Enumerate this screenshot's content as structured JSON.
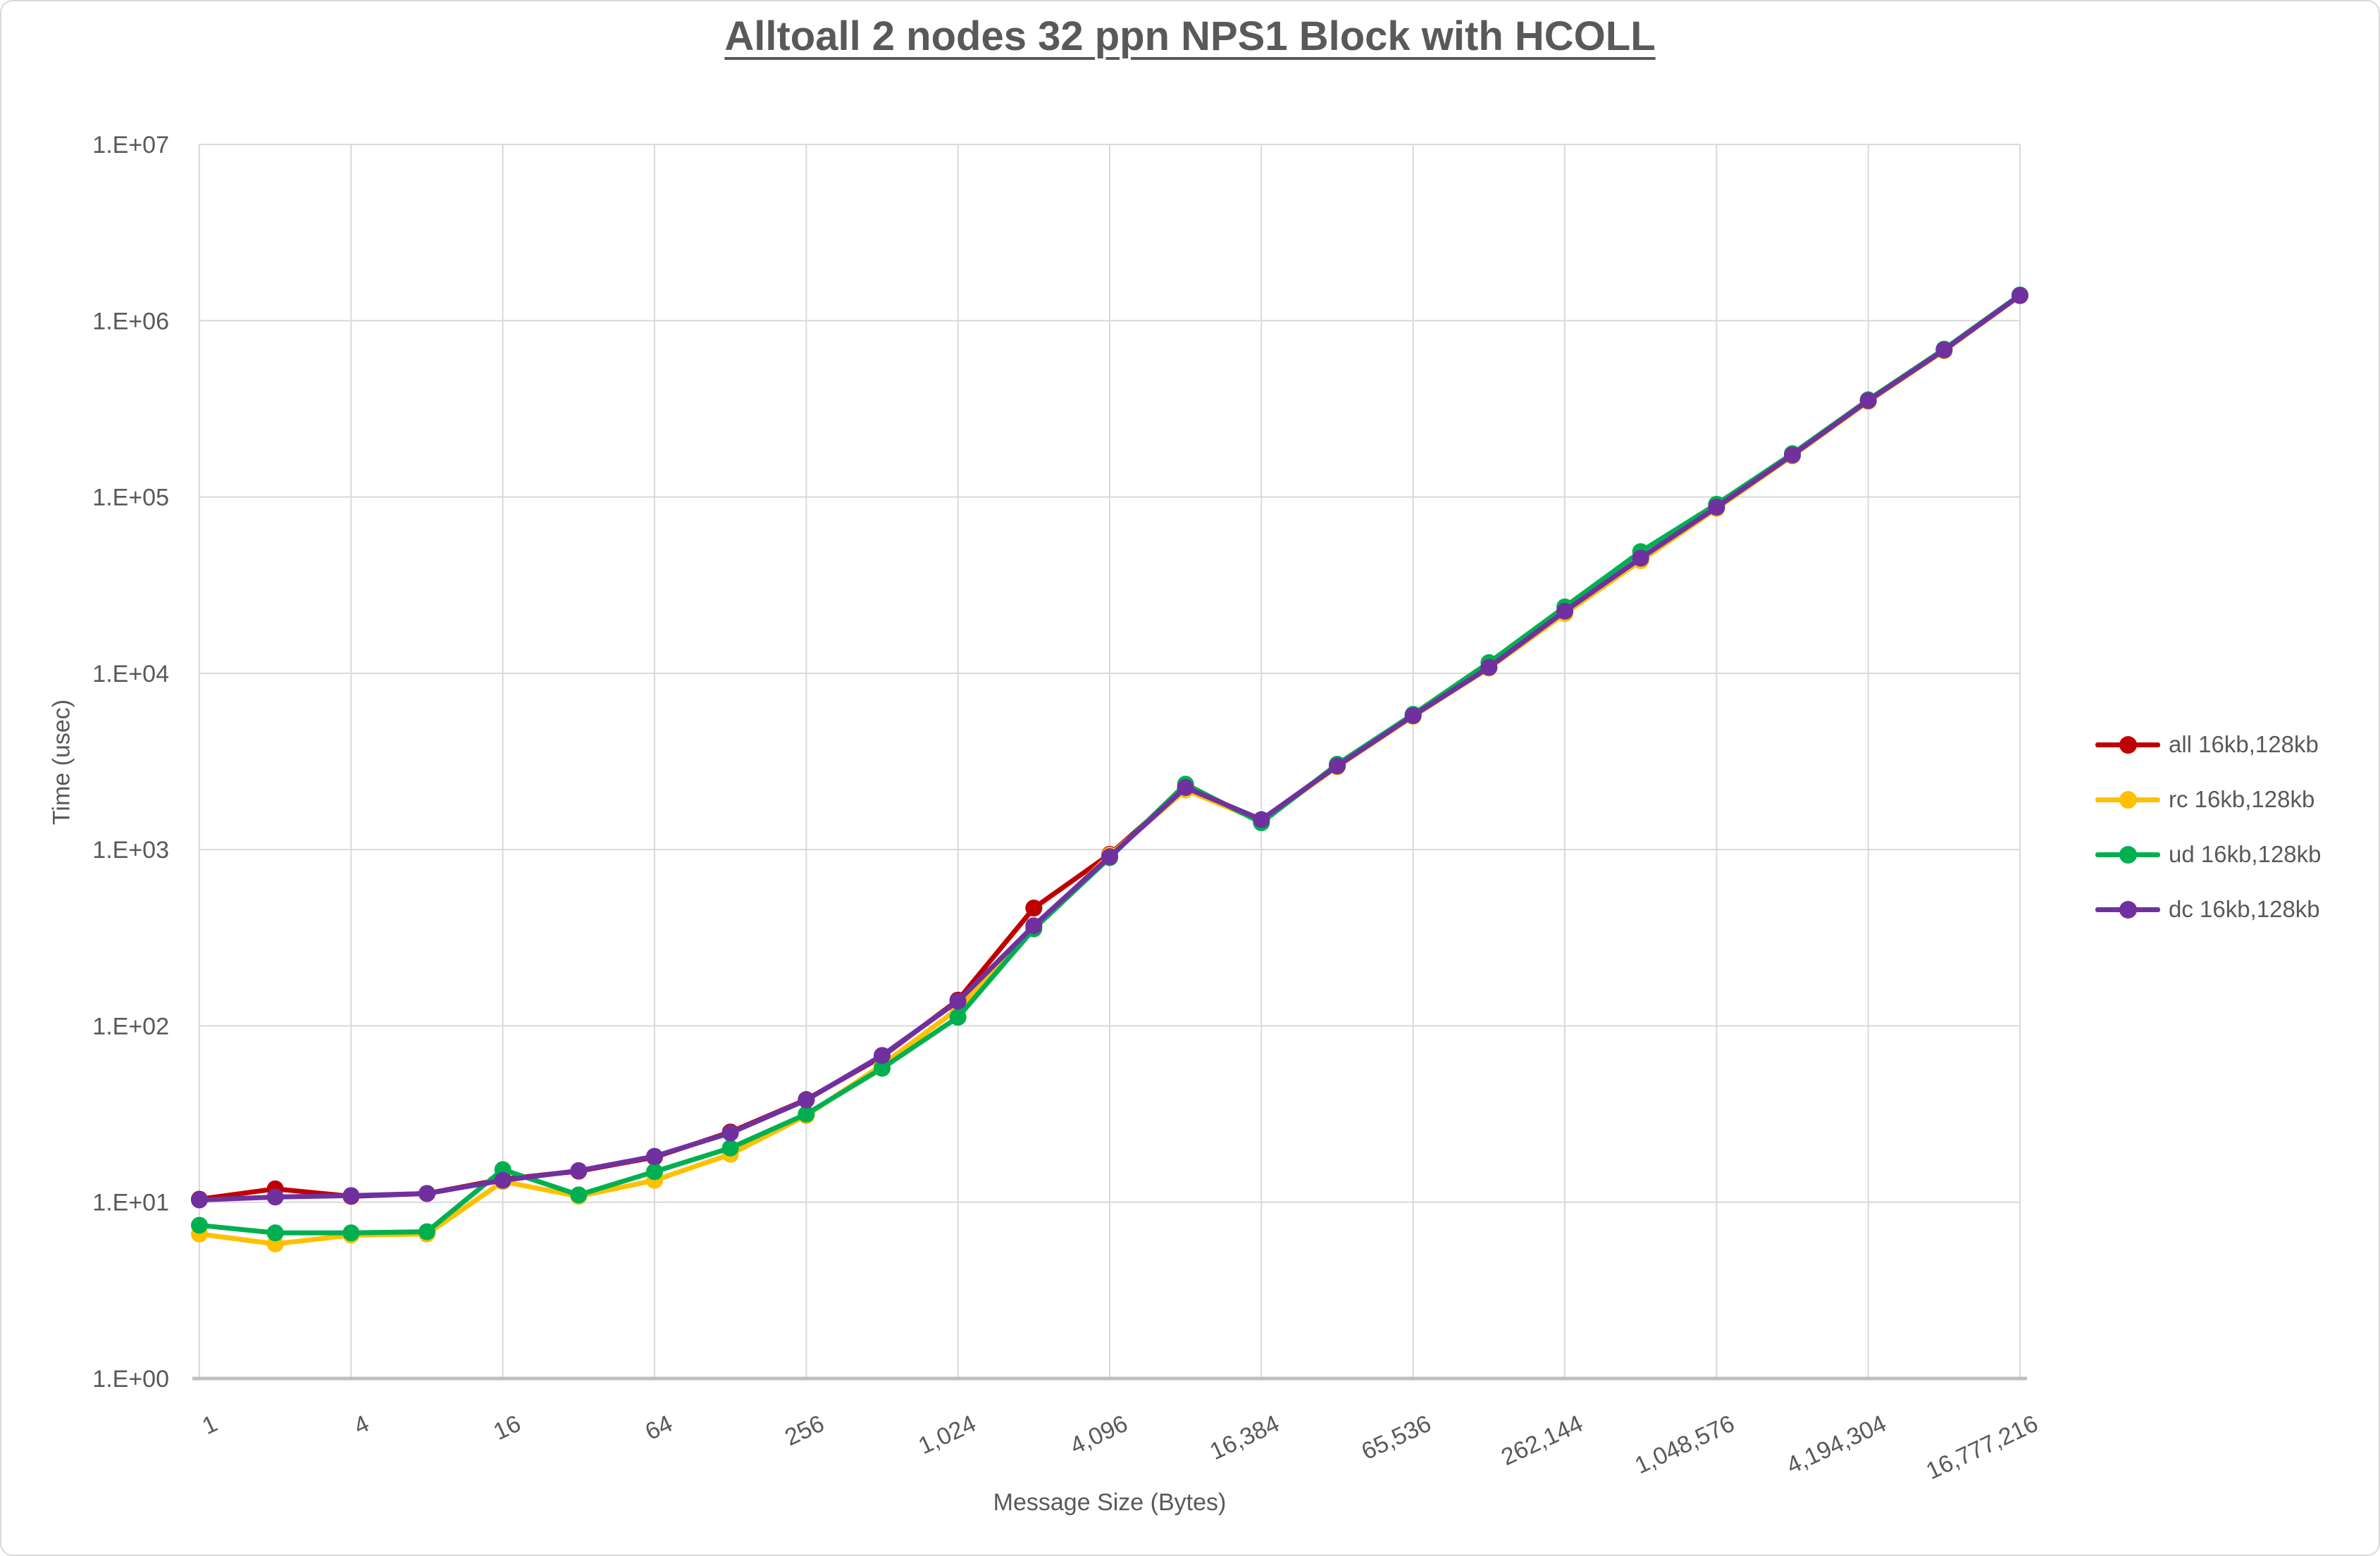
{
  "chart": {
    "title": "Alltoall 2 nodes 32 ppn NPS1 Block with HCOLL",
    "x_axis_title": "Message Size (Bytes)",
    "y_axis_title": "Time (usec)",
    "y_tick_labels": [
      "1.E+00",
      "1.E+01",
      "1.E+02",
      "1.E+03",
      "1.E+04",
      "1.E+05",
      "1.E+06",
      "1.E+07"
    ],
    "x_tick_labels": [
      "1",
      "4",
      "16",
      "64",
      "256",
      "1,024",
      "4,096",
      "16,384",
      "65,536",
      "262,144",
      "1,048,576",
      "4,194,304",
      "16,777,216"
    ],
    "colors": {
      "text": "#595959",
      "gridline": "#D9D9D9",
      "axis_line": "#BFBFBF"
    },
    "legend": [
      {
        "label": "all 16kb,128kb",
        "color": "#C00000"
      },
      {
        "label": "rc 16kb,128kb",
        "color": "#FFC000"
      },
      {
        "label": "ud 16kb,128kb",
        "color": "#00B050"
      },
      {
        "label": "dc 16kb,128kb",
        "color": "#7030A0"
      }
    ]
  },
  "chart_data": {
    "type": "line",
    "x_scale": "log2",
    "y_scale": "log10",
    "ylim": [
      1,
      10000000
    ],
    "grid": true,
    "legend_position": "right",
    "x": [
      1,
      2,
      4,
      8,
      16,
      32,
      64,
      128,
      256,
      512,
      1024,
      2048,
      4096,
      8192,
      16384,
      32768,
      65536,
      131072,
      262144,
      524288,
      1048576,
      2097152,
      4194304,
      8388608,
      16777216
    ],
    "series": [
      {
        "name": "all 16kb,128kb",
        "color": "#C00000",
        "values": [
          10.4,
          11.9,
          10.8,
          11.2,
          13.5,
          15.0,
          18.0,
          25.0,
          38.2,
          67.0,
          140,
          466,
          940,
          2250,
          1470,
          3000,
          5800,
          10800,
          22300,
          44500,
          87000,
          172000,
          350000,
          680000,
          1390000
        ]
      },
      {
        "name": "rc 16kb,128kb",
        "color": "#FFC000",
        "values": [
          6.6,
          5.8,
          6.5,
          6.6,
          13.1,
          10.8,
          13.3,
          18.7,
          31.0,
          60.0,
          125,
          360,
          930,
          2180,
          1450,
          2950,
          5700,
          10700,
          21800,
          43500,
          86000,
          171000,
          348000,
          675000,
          1385000
        ]
      },
      {
        "name": "ud 16kb,128kb",
        "color": "#00B050",
        "values": [
          7.4,
          6.7,
          6.7,
          6.8,
          15.3,
          11.0,
          14.9,
          20.3,
          31.6,
          57.5,
          112,
          355,
          900,
          2350,
          1420,
          3050,
          5850,
          11500,
          23800,
          49000,
          91000,
          176000,
          356000,
          690000,
          1400000
        ]
      },
      {
        "name": "dc 16kb,128kb",
        "color": "#7030A0",
        "values": [
          10.3,
          10.7,
          10.9,
          11.2,
          13.3,
          15.1,
          18.2,
          24.7,
          38.0,
          68.0,
          138,
          370,
          912,
          2250,
          1480,
          2980,
          5750,
          10800,
          22500,
          45000,
          87500,
          173000,
          352000,
          682000,
          1390000
        ]
      }
    ]
  }
}
